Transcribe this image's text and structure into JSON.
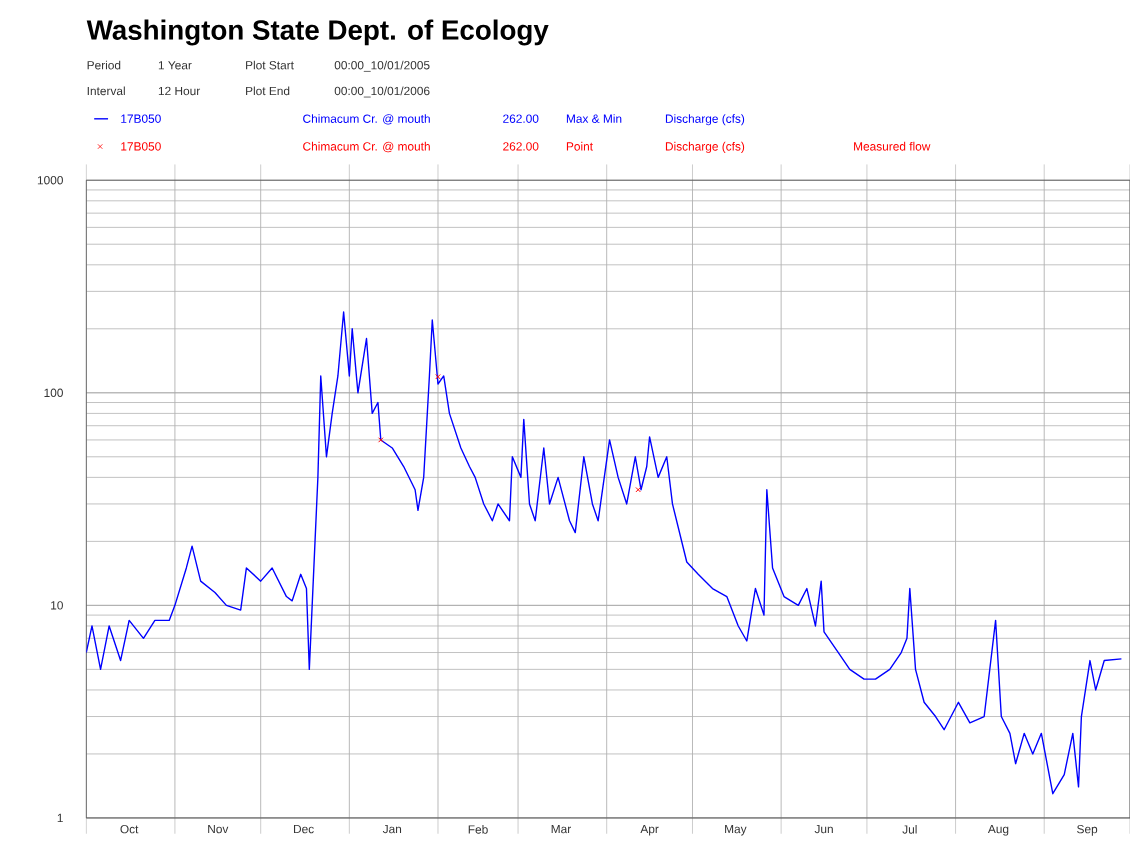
{
  "chart_data": {
    "type": "line",
    "title": "Washington State Dept. of Ecology",
    "annotations": [
      "Period",
      "1 Year",
      "Plot Start",
      "00:00_10/01/2005",
      "Interval",
      "12 Hour",
      "Plot End",
      "00:00_10/01/2006",
      "Chimacum Cr. @ mouth",
      "262.00",
      "Max & Min",
      "Discharge (cfs)",
      "Chimacum Cr. @ mouth",
      "262.00",
      "Point",
      "Discharge (cfs)",
      "Measured flow"
    ],
    "log": "y",
    "grid": true,
    "legend": "top left",
    "xlim": [
      "2005-10-01",
      "2006-10-01"
    ],
    "xticks": [
      {
        "value": "2005-10-01",
        "label": null
      },
      {
        "value": "2005-11-01",
        "label": null
      },
      {
        "value": "2005-12-01",
        "label": null
      },
      {
        "value": "2006-01-01",
        "label": null
      },
      {
        "value": "2006-02-01",
        "label": null
      },
      {
        "value": "2006-03-01",
        "label": null
      },
      {
        "value": "2006-04-01",
        "label": null
      },
      {
        "value": "2006-05-01",
        "label": null
      },
      {
        "value": "2006-06-01",
        "label": null
      },
      {
        "value": "2006-07-01",
        "label": null
      },
      {
        "value": "2006-08-01",
        "label": null
      },
      {
        "value": "2006-09-01",
        "label": null
      },
      {
        "value": "2006-10-01",
        "label": null
      },
      {
        "value": "2005-10-16",
        "label": "Oct"
      },
      {
        "value": "2005-11-16",
        "label": "Nov"
      },
      {
        "value": "2005-12-16",
        "label": "Dec"
      },
      {
        "value": "2006-01-16",
        "label": "Jan"
      },
      {
        "value": "2006-02-15",
        "label": "Feb"
      },
      {
        "value": "2006-03-16",
        "label": "Mar"
      },
      {
        "value": "2006-04-16",
        "label": "Apr"
      },
      {
        "value": "2006-05-16",
        "label": "May"
      },
      {
        "value": "2006-06-16",
        "label": "Jun"
      },
      {
        "value": "2006-07-16",
        "label": "Jul"
      },
      {
        "value": "2006-08-16",
        "label": "Aug"
      },
      {
        "value": "2006-09-16",
        "label": "Sep"
      }
    ],
    "ylim": [
      1,
      1000
    ],
    "yticks": [
      1,
      10,
      100,
      1000
    ],
    "series": [
      {
        "name": "17B050",
        "color": "#0000ff",
        "marker": "none",
        "x": [
          "2005-10-01",
          "2005-10-03",
          "2005-10-06",
          "2005-10-09",
          "2005-10-13",
          "2005-10-16",
          "2005-10-21",
          "2005-10-25",
          "2005-10-30",
          "2005-11-01",
          "2005-11-05",
          "2005-11-07",
          "2005-11-10",
          "2005-11-15",
          "2005-11-19",
          "2005-11-24",
          "2005-11-26",
          "2005-12-01",
          "2005-12-05",
          "2005-12-10",
          "2005-12-12",
          "2005-12-15",
          "2005-12-17",
          "2005-12-18",
          "2005-12-19",
          "2005-12-20",
          "2005-12-21",
          "2005-12-22",
          "2005-12-24",
          "2005-12-26",
          "2005-12-28",
          "2005-12-30",
          "2006-01-01",
          "2006-01-02",
          "2006-01-04",
          "2006-01-07",
          "2006-01-09",
          "2006-01-11",
          "2006-01-12",
          "2006-01-16",
          "2006-01-20",
          "2006-01-24",
          "2006-01-25",
          "2006-01-27",
          "2006-01-29",
          "2006-01-30",
          "2006-02-01",
          "2006-02-03",
          "2006-02-05",
          "2006-02-09",
          "2006-02-12",
          "2006-02-14",
          "2006-02-17",
          "2006-02-20",
          "2006-02-22",
          "2006-02-26",
          "2006-02-27",
          "2006-03-02",
          "2006-03-03",
          "2006-03-05",
          "2006-03-07",
          "2006-03-10",
          "2006-03-12",
          "2006-03-15",
          "2006-03-19",
          "2006-03-21",
          "2006-03-24",
          "2006-03-27",
          "2006-03-29",
          "2006-04-02",
          "2006-04-05",
          "2006-04-08",
          "2006-04-11",
          "2006-04-13",
          "2006-04-15",
          "2006-04-16",
          "2006-04-19",
          "2006-04-22",
          "2006-04-24",
          "2006-04-29",
          "2006-05-03",
          "2006-05-08",
          "2006-05-13",
          "2006-05-17",
          "2006-05-20",
          "2006-05-23",
          "2006-05-26",
          "2006-05-27",
          "2006-05-29",
          "2006-06-02",
          "2006-06-07",
          "2006-06-10",
          "2006-06-13",
          "2006-06-15",
          "2006-06-16",
          "2006-06-21",
          "2006-06-25",
          "2006-06-30",
          "2006-07-04",
          "2006-07-09",
          "2006-07-13",
          "2006-07-15",
          "2006-07-16",
          "2006-07-18",
          "2006-07-21",
          "2006-07-25",
          "2006-07-28",
          "2006-08-02",
          "2006-08-06",
          "2006-08-11",
          "2006-08-15",
          "2006-08-17",
          "2006-08-20",
          "2006-08-22",
          "2006-08-25",
          "2006-08-28",
          "2006-08-31",
          "2006-09-04",
          "2006-09-08",
          "2006-09-11",
          "2006-09-13",
          "2006-09-14",
          "2006-09-17",
          "2006-09-19",
          "2006-09-22",
          "2006-09-28"
        ],
        "values": [
          6,
          8,
          5,
          8,
          5.5,
          8.5,
          7,
          8.5,
          8.5,
          10,
          15,
          19,
          13,
          11.5,
          10,
          9.5,
          15,
          13,
          15,
          11,
          10.5,
          14,
          12,
          5,
          10,
          20,
          40,
          120,
          50,
          80,
          120,
          240,
          120,
          200,
          100,
          180,
          80,
          90,
          60,
          55,
          45,
          35,
          28,
          40,
          120,
          220,
          110,
          120,
          80,
          55,
          45,
          40,
          30,
          25,
          30,
          25,
          50,
          40,
          75,
          30,
          25,
          55,
          30,
          40,
          25,
          22,
          50,
          30,
          25,
          60,
          40,
          30,
          50,
          35,
          45,
          62,
          40,
          50,
          30,
          16,
          14,
          12,
          11,
          8,
          6.8,
          12,
          9,
          35,
          15,
          11,
          10,
          12,
          8,
          13,
          7.5,
          6,
          5,
          4.5,
          4.5,
          5,
          6,
          7,
          12,
          5,
          3.5,
          3,
          2.6,
          3.5,
          2.8,
          3,
          8.5,
          3,
          2.5,
          1.8,
          2.5,
          2,
          2.5,
          1.3,
          1.6,
          2.5,
          1.4,
          3,
          5.5,
          4,
          5.5,
          5.6
        ]
      },
      {
        "name": "17B050",
        "color": "#ff0000",
        "type": "scatter",
        "marker": "cross",
        "x": [
          "2006-01-12",
          "2006-02-01",
          "2006-04-12"
        ],
        "values": [
          60,
          119,
          35
        ]
      }
    ]
  }
}
